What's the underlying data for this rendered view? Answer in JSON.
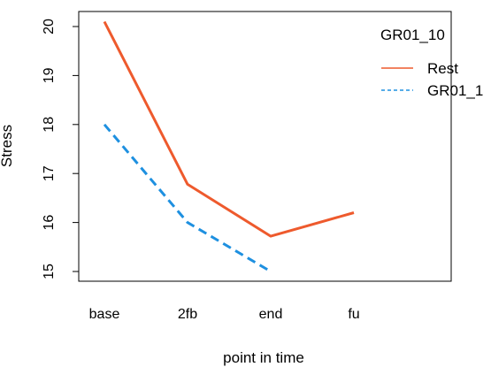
{
  "chart_data": {
    "type": "line",
    "title": "",
    "xlabel": "point in time",
    "ylabel": "Stress",
    "categories": [
      "base",
      "2fb",
      "end",
      "fu"
    ],
    "ylim": [
      15,
      20
    ],
    "yticks": [
      15,
      16,
      17,
      18,
      19,
      20
    ],
    "grid": false,
    "legend": {
      "title": "GR01_10",
      "placement": "top-right",
      "entries": [
        "Rest",
        "GR01_1"
      ]
    },
    "series": [
      {
        "name": "Rest",
        "color": "#EE5A2D",
        "style": "solid",
        "values": [
          20.1,
          16.78,
          15.72,
          16.2
        ]
      },
      {
        "name": "GR01_1",
        "color": "#1E90E0",
        "style": "dashed",
        "values": [
          18.0,
          16.0,
          15.0,
          null
        ]
      }
    ]
  }
}
